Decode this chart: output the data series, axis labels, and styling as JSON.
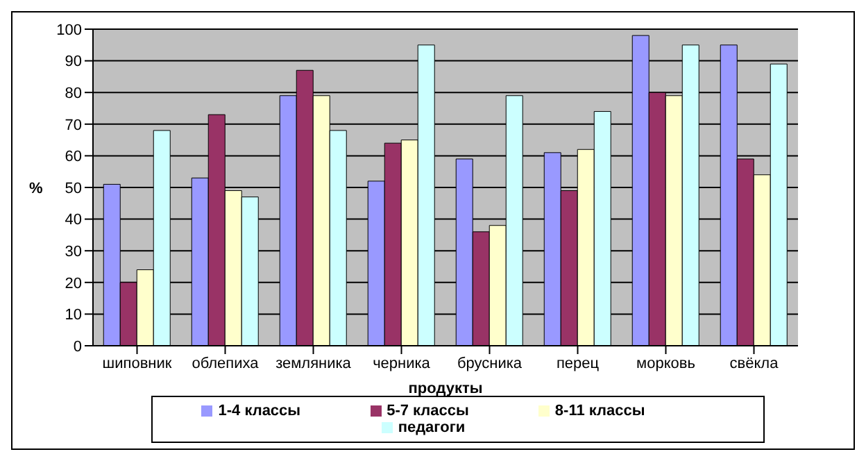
{
  "chart_data": {
    "type": "bar",
    "xlabel": "продукты",
    "ylabel": "%",
    "categories": [
      "шиповник",
      "облепиха",
      "земляника",
      "черника",
      "брусника",
      "перец",
      "морковь",
      "свёкла"
    ],
    "series": [
      {
        "name": "1-4 классы",
        "color": "#9999ff",
        "values": [
          51,
          53,
          79,
          52,
          59,
          61,
          98,
          95
        ]
      },
      {
        "name": "5-7 классы",
        "color": "#993366",
        "values": [
          20,
          73,
          87,
          64,
          36,
          49,
          80,
          59
        ]
      },
      {
        "name": "8-11 классы",
        "color": "#ffffcc",
        "values": [
          24,
          49,
          79,
          65,
          38,
          62,
          79,
          54
        ]
      },
      {
        "name": "педагоги",
        "color": "#ccffff",
        "values": [
          68,
          47,
          68,
          95,
          79,
          74,
          95,
          89
        ]
      }
    ],
    "ylim": [
      0,
      100
    ],
    "yticks": [
      0,
      10,
      20,
      30,
      40,
      50,
      60,
      70,
      80,
      90,
      100
    ],
    "grid": "y",
    "legend": "bottom"
  }
}
